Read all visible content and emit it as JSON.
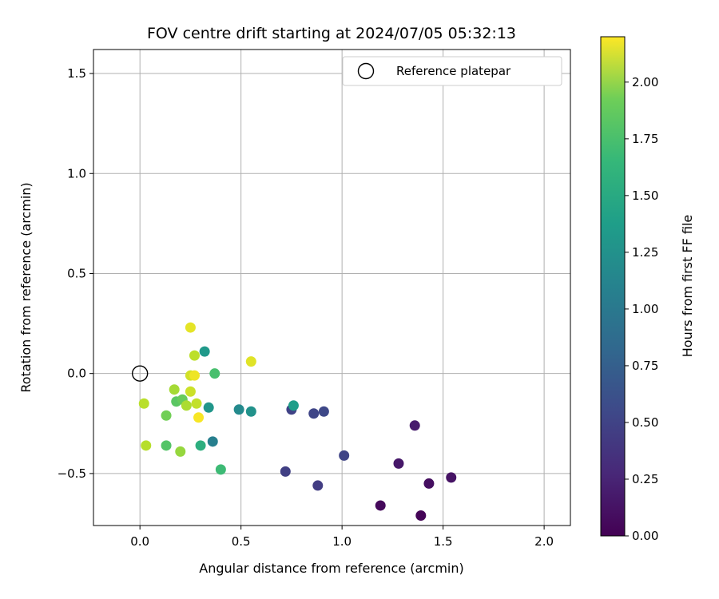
{
  "chart_data": {
    "type": "scatter",
    "title": "FOV centre drift starting at 2024/07/05 05:32:13",
    "xlabel": "Angular distance from reference (arcmin)",
    "ylabel": "Rotation from reference (arcmin)",
    "xlim": [
      -0.23,
      2.13
    ],
    "ylim": [
      -0.76,
      1.62
    ],
    "xticks": [
      0.0,
      0.5,
      1.0,
      1.5,
      2.0
    ],
    "xtick_labels": [
      "0.0",
      "0.5",
      "1.0",
      "1.5",
      "2.0"
    ],
    "yticks": [
      -0.5,
      0.0,
      0.5,
      1.0,
      1.5
    ],
    "ytick_labels": [
      "−0.5",
      "0.0",
      "0.5",
      "1.0",
      "1.5"
    ],
    "grid": true,
    "legend": {
      "placement": "top-right",
      "entries": [
        "Reference platepar"
      ]
    },
    "reference_point": {
      "x": 0.0,
      "y": 0.0
    },
    "colorbar": {
      "label": "Hours from first FF file",
      "min": 0.0,
      "max": 2.2,
      "ticks": [
        0.0,
        0.25,
        0.5,
        0.75,
        1.0,
        1.25,
        1.5,
        1.75,
        2.0
      ],
      "tick_labels": [
        "0.00",
        "0.25",
        "0.50",
        "0.75",
        "1.00",
        "1.25",
        "1.50",
        "1.75",
        "2.00"
      ],
      "colormap": "viridis"
    },
    "points": [
      {
        "x": 1.39,
        "y": -0.71,
        "c": 0.02
      },
      {
        "x": 1.19,
        "y": -0.66,
        "c": 0.05
      },
      {
        "x": 1.43,
        "y": -0.55,
        "c": 0.08
      },
      {
        "x": 1.54,
        "y": -0.52,
        "c": 0.11
      },
      {
        "x": 1.28,
        "y": -0.45,
        "c": 0.14
      },
      {
        "x": 1.36,
        "y": -0.26,
        "c": 0.17
      },
      {
        "x": 0.88,
        "y": -0.56,
        "c": 0.4
      },
      {
        "x": 0.72,
        "y": -0.49,
        "c": 0.42
      },
      {
        "x": 1.01,
        "y": -0.41,
        "c": 0.45
      },
      {
        "x": 0.91,
        "y": -0.19,
        "c": 0.48
      },
      {
        "x": 0.86,
        "y": -0.2,
        "c": 0.46
      },
      {
        "x": 0.75,
        "y": -0.18,
        "c": 0.44
      },
      {
        "x": 0.36,
        "y": -0.34,
        "c": 0.95
      },
      {
        "x": 0.49,
        "y": -0.18,
        "c": 1.05
      },
      {
        "x": 0.55,
        "y": -0.19,
        "c": 1.12
      },
      {
        "x": 0.34,
        "y": -0.17,
        "c": 1.15
      },
      {
        "x": 0.32,
        "y": 0.11,
        "c": 1.18
      },
      {
        "x": 0.76,
        "y": -0.16,
        "c": 1.22
      },
      {
        "x": 0.3,
        "y": -0.36,
        "c": 1.38
      },
      {
        "x": 0.4,
        "y": -0.48,
        "c": 1.5
      },
      {
        "x": 0.37,
        "y": 0.0,
        "c": 1.55
      },
      {
        "x": 0.13,
        "y": -0.36,
        "c": 1.6
      },
      {
        "x": 0.18,
        "y": -0.14,
        "c": 1.63
      },
      {
        "x": 0.21,
        "y": -0.13,
        "c": 1.68
      },
      {
        "x": 0.13,
        "y": -0.21,
        "c": 1.72
      },
      {
        "x": 0.2,
        "y": -0.39,
        "c": 1.85
      },
      {
        "x": 0.17,
        "y": -0.08,
        "c": 1.9
      },
      {
        "x": 0.23,
        "y": -0.16,
        "c": 1.92
      },
      {
        "x": 0.27,
        "y": 0.09,
        "c": 1.98
      },
      {
        "x": 0.28,
        "y": -0.15,
        "c": 2.0
      },
      {
        "x": 0.02,
        "y": -0.15,
        "c": 1.97
      },
      {
        "x": 0.03,
        "y": -0.36,
        "c": 1.96
      },
      {
        "x": 0.25,
        "y": -0.09,
        "c": 2.03
      },
      {
        "x": 0.25,
        "y": -0.01,
        "c": 2.05
      },
      {
        "x": 0.55,
        "y": 0.06,
        "c": 2.1
      },
      {
        "x": 0.25,
        "y": 0.23,
        "c": 2.12
      },
      {
        "x": 0.27,
        "y": -0.01,
        "c": 2.15
      },
      {
        "x": 0.29,
        "y": -0.22,
        "c": 2.18
      }
    ]
  }
}
